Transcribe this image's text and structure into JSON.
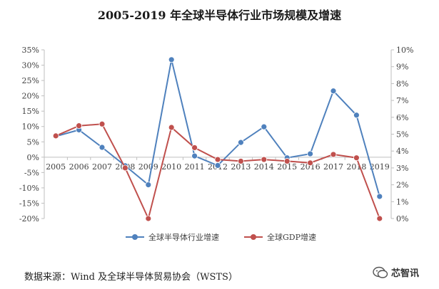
{
  "chart_data": {
    "type": "line",
    "title": "2005-2019 年全球半导体行业市场规模及增速",
    "x": [
      "2005",
      "2006",
      "2007",
      "2008",
      "2009",
      "2010",
      "2011",
      "2012",
      "2013",
      "2014",
      "2015",
      "2016",
      "2017",
      "2018",
      "2019"
    ],
    "y_left": {
      "min": -20,
      "max": 35,
      "step": 5,
      "ticks": [
        "35%",
        "30%",
        "25%",
        "20%",
        "15%",
        "10%",
        "5%",
        "0%",
        "-5%",
        "-10%",
        "-15%",
        "-20%"
      ]
    },
    "y_right": {
      "min": 0,
      "max": 10,
      "step": 1,
      "ticks": [
        "10%",
        "9%",
        "8%",
        "7%",
        "6%",
        "5%",
        "4%",
        "3%",
        "2%",
        "1%",
        "0%"
      ]
    },
    "series": [
      {
        "name": "全球半导体行业增速",
        "axis": "left",
        "color": "#4f81bd",
        "values": [
          6.8,
          8.9,
          3.2,
          -2.8,
          -9.0,
          31.8,
          0.4,
          -2.7,
          4.8,
          9.9,
          -0.2,
          1.1,
          21.6,
          13.7,
          -12.8
        ]
      },
      {
        "name": "全球GDP增速",
        "axis": "right",
        "color": "#c0504d",
        "values": [
          4.9,
          5.5,
          5.6,
          3.0,
          0.0,
          5.4,
          4.2,
          3.5,
          3.4,
          3.5,
          3.4,
          3.3,
          3.8,
          3.6,
          0.0
        ]
      }
    ],
    "grid": false,
    "legend": "bottom"
  },
  "footer": {
    "source": "数据来源：Wind 及全球半导体贸易协会（WSTS）",
    "watermark": "芯智讯"
  }
}
